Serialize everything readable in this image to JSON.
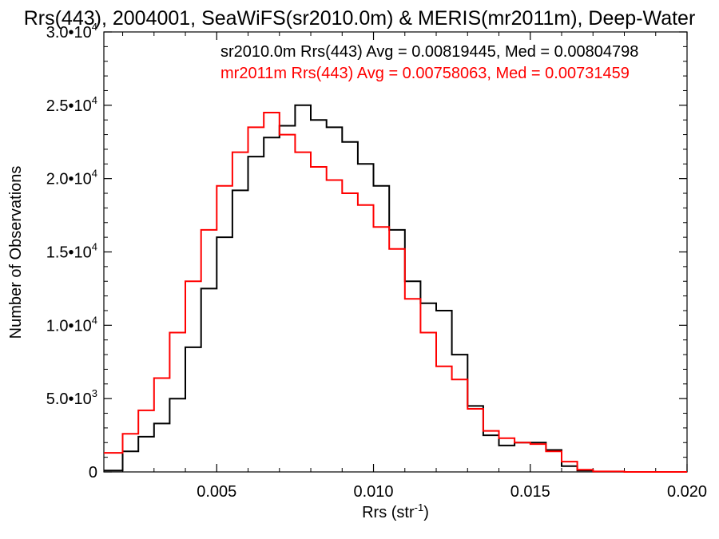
{
  "chart_data": {
    "type": "line",
    "title": "Rrs(443), 2004001, SeaWiFS(sr2010.0m) & MERIS(mr2011m), Deep-Water",
    "xlabel": "Rrs (str",
    "xlabel_sup": "-1",
    "xlabel_end": ")",
    "ylabel": "Number of Observations",
    "xlim": [
      0.0014,
      0.02
    ],
    "ylim": [
      0,
      30000
    ],
    "step": "histogram",
    "x_ticks": [
      {
        "value": 0.005,
        "label": "0.005"
      },
      {
        "value": 0.01,
        "label": "0.010"
      },
      {
        "value": 0.015,
        "label": "0.015"
      },
      {
        "value": 0.02,
        "label": "0.020"
      }
    ],
    "y_ticks": [
      {
        "value": 0,
        "mant": "0",
        "exp": ""
      },
      {
        "value": 5000,
        "mant": "5.0•10",
        "exp": "3"
      },
      {
        "value": 10000,
        "mant": "1.0•10",
        "exp": "4"
      },
      {
        "value": 15000,
        "mant": "1.5•10",
        "exp": "4"
      },
      {
        "value": 20000,
        "mant": "2.0•10",
        "exp": "4"
      },
      {
        "value": 25000,
        "mant": "2.5•10",
        "exp": "4"
      },
      {
        "value": 30000,
        "mant": "3.0•10",
        "exp": "4"
      }
    ],
    "legend": "top-right",
    "grid": false,
    "series": [
      {
        "name": "sr2010.0m Rrs(443) Avg = 0.00819445, Med = 0.00804798",
        "color": "#000000",
        "x": [
          0.0014,
          0.002,
          0.0025,
          0.003,
          0.0035,
          0.004,
          0.0045,
          0.005,
          0.0055,
          0.006,
          0.0065,
          0.007,
          0.0075,
          0.008,
          0.0085,
          0.009,
          0.0095,
          0.01,
          0.0105,
          0.011,
          0.0115,
          0.012,
          0.0125,
          0.013,
          0.0135,
          0.014,
          0.0145,
          0.015,
          0.0155,
          0.016,
          0.0165,
          0.017,
          0.018,
          0.019,
          0.02
        ],
        "y": [
          100,
          1400,
          2400,
          3300,
          5000,
          8500,
          12500,
          16000,
          19200,
          21500,
          22800,
          23600,
          25000,
          24000,
          23500,
          22500,
          21000,
          19500,
          16500,
          13000,
          11500,
          11000,
          8000,
          4500,
          2500,
          1800,
          2000,
          2000,
          1500,
          400,
          100,
          20,
          0,
          0,
          0
        ]
      },
      {
        "name": "mr2011m Rrs(443) Avg = 0.00758063, Med = 0.00731459",
        "color": "#ff0000",
        "x": [
          0.0014,
          0.002,
          0.0025,
          0.003,
          0.0035,
          0.004,
          0.0045,
          0.005,
          0.0055,
          0.006,
          0.0065,
          0.007,
          0.0075,
          0.008,
          0.0085,
          0.009,
          0.0095,
          0.01,
          0.0105,
          0.011,
          0.0115,
          0.012,
          0.0125,
          0.013,
          0.0135,
          0.014,
          0.0145,
          0.015,
          0.0155,
          0.016,
          0.0165,
          0.017,
          0.018,
          0.019,
          0.02
        ],
        "y": [
          1300,
          2600,
          4200,
          6400,
          9500,
          13000,
          16500,
          19500,
          21800,
          23500,
          24500,
          23000,
          21800,
          20800,
          19900,
          19000,
          18200,
          16700,
          15200,
          11800,
          9500,
          7200,
          6300,
          4300,
          2800,
          2300,
          2000,
          1900,
          1400,
          700,
          150,
          30,
          0,
          0,
          0
        ]
      }
    ]
  }
}
